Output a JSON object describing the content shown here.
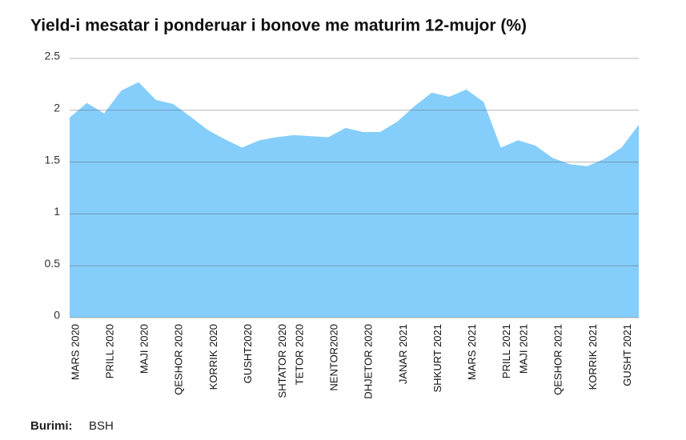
{
  "chart_data": {
    "type": "area",
    "title": "Yield-i mesatar i ponderuar i bonove me maturim 12-mujor (%)",
    "source_label": "Burimi:",
    "source": "BSH",
    "categories": [
      "MARS 2020",
      null,
      "PRILL 2020",
      null,
      "MAJI 2020",
      null,
      "QESHOR 2020",
      null,
      "KORRIK 2020",
      null,
      "GUSHT2020",
      null,
      "SHTATOR 2020",
      "TETOR 2020",
      null,
      "NENTOR2020",
      null,
      "DHJETOR 2020",
      null,
      "JANAR 2021",
      null,
      "SHKURT 2021",
      null,
      "MARS 2021",
      null,
      "PRILL 2021",
      "MAJI 2021",
      null,
      "QESHOR  2021",
      null,
      "KORRIK  2021",
      null,
      "GUSHT 2021",
      null
    ],
    "values": [
      1.93,
      2.07,
      1.97,
      2.19,
      2.27,
      2.1,
      2.06,
      1.94,
      1.81,
      1.72,
      1.64,
      1.71,
      1.74,
      1.76,
      1.75,
      1.74,
      1.83,
      1.79,
      1.79,
      1.89,
      2.04,
      2.17,
      2.13,
      2.2,
      2.08,
      1.64,
      1.71,
      1.66,
      1.54,
      1.48,
      1.46,
      1.53,
      1.64,
      1.86
    ],
    "color": "#85cefc",
    "ylim": [
      0,
      2.5
    ],
    "yticks": [
      0,
      0.5,
      1,
      1.5,
      2,
      2.5
    ],
    "grid": true
  }
}
